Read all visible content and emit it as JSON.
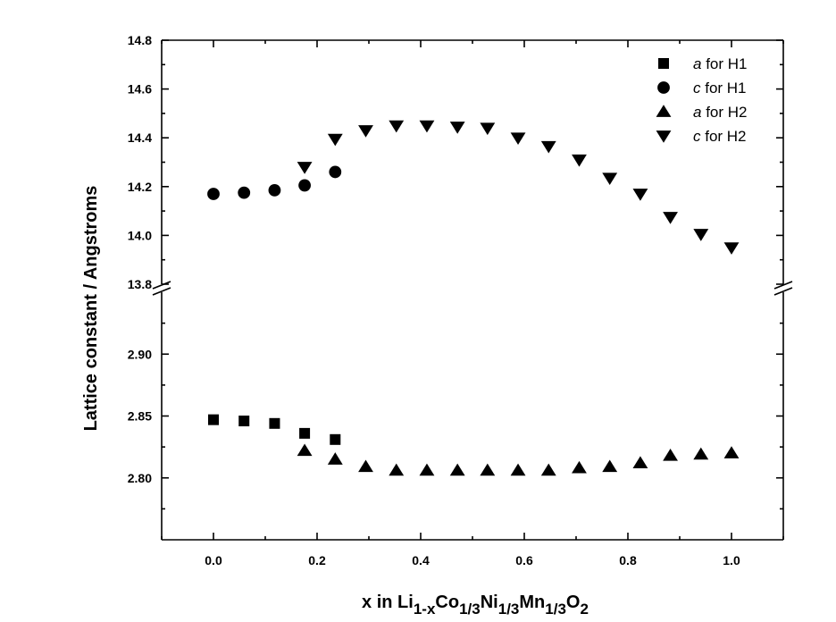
{
  "chart_data": {
    "type": "scatter",
    "ylabel": "Lattice constant / Angstroms",
    "xlabel": {
      "prefix": "x in Li",
      "parts": [
        {
          "text": "1-x",
          "sub": true
        },
        {
          "text": "Co",
          "sub": false
        },
        {
          "text": "1/3",
          "sub": true
        },
        {
          "text": "Ni",
          "sub": false
        },
        {
          "text": "1/3",
          "sub": true
        },
        {
          "text": "Mn",
          "sub": false
        },
        {
          "text": "1/3",
          "sub": true
        },
        {
          "text": "O",
          "sub": false
        },
        {
          "text": "2",
          "sub": true
        }
      ]
    },
    "x_ticks": [
      "0.0",
      "0.2",
      "0.4",
      "0.6",
      "0.8",
      "1.0"
    ],
    "x_tick_values": [
      0.0,
      0.2,
      0.4,
      0.6,
      0.8,
      1.0
    ],
    "xlim": [
      -0.1,
      1.1
    ],
    "broken_y_axis": true,
    "upper_panel": {
      "ylim": [
        13.8,
        14.8
      ],
      "y_ticks": [
        "13.8",
        "14.0",
        "14.2",
        "14.4",
        "14.6",
        "14.8"
      ],
      "y_tick_values": [
        13.8,
        14.0,
        14.2,
        14.4,
        14.6,
        14.8
      ]
    },
    "lower_panel": {
      "ylim": [
        2.75,
        2.95
      ],
      "y_ticks": [
        "2.80",
        "2.85",
        "2.90"
      ],
      "y_tick_values": [
        2.8,
        2.85,
        2.9
      ]
    },
    "series": [
      {
        "name": "a for H1",
        "name_italic": "a",
        "name_rest": " for H1",
        "marker": "square",
        "panel": "lower",
        "x": [
          0.0,
          0.059,
          0.118,
          0.176,
          0.235
        ],
        "y": [
          2.847,
          2.846,
          2.844,
          2.836,
          2.831
        ]
      },
      {
        "name": "c for H1",
        "name_italic": "c",
        "name_rest": " for H1",
        "marker": "circle",
        "panel": "upper",
        "x": [
          0.0,
          0.059,
          0.118,
          0.176,
          0.235
        ],
        "y": [
          14.17,
          14.175,
          14.185,
          14.205,
          14.26
        ]
      },
      {
        "name": "a for H2",
        "name_italic": "a",
        "name_rest": " for H2",
        "marker": "triangle-up",
        "panel": "lower",
        "x": [
          0.176,
          0.235,
          0.294,
          0.353,
          0.412,
          0.471,
          0.529,
          0.588,
          0.647,
          0.706,
          0.765,
          0.824,
          0.882,
          0.941,
          1.0
        ],
        "y": [
          2.822,
          2.815,
          2.809,
          2.806,
          2.806,
          2.806,
          2.806,
          2.806,
          2.806,
          2.808,
          2.809,
          2.812,
          2.818,
          2.819,
          2.82
        ]
      },
      {
        "name": "c for H2",
        "name_italic": "c",
        "name_rest": " for H2",
        "marker": "triangle-down",
        "panel": "upper",
        "x": [
          0.176,
          0.235,
          0.294,
          0.353,
          0.412,
          0.471,
          0.529,
          0.588,
          0.647,
          0.706,
          0.765,
          0.824,
          0.882,
          0.941,
          1.0
        ],
        "y": [
          14.28,
          14.395,
          14.43,
          14.45,
          14.45,
          14.445,
          14.44,
          14.4,
          14.365,
          14.31,
          14.235,
          14.17,
          14.075,
          14.005,
          13.95
        ]
      }
    ],
    "legend_position": "top-right",
    "grid": false,
    "colors": {
      "marker": "#000000",
      "axis": "#000000",
      "background": "#ffffff"
    }
  }
}
